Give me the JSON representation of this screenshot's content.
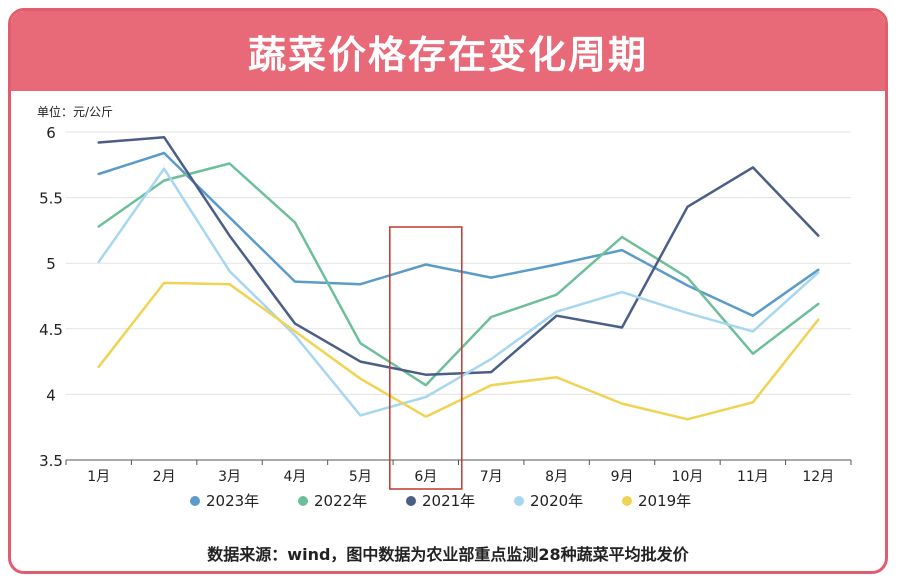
{
  "header": {
    "title": "蔬菜价格存在变化周期"
  },
  "source_note": "数据来源：wind，图中数据为农业部重点监测28种蔬菜平均批发价",
  "colors": {
    "header_bg": "#e86a79",
    "border": "#e35c6e",
    "highlight_box": "#c0392b"
  },
  "chart_data": {
    "type": "line",
    "title": "",
    "unit_label": "单位：元/公斤",
    "categories": [
      "1月",
      "2月",
      "3月",
      "4月",
      "5月",
      "6月",
      "7月",
      "8月",
      "9月",
      "10月",
      "11月",
      "12月"
    ],
    "ylim": [
      3.5,
      6
    ],
    "yticks": [
      "6",
      "5.5",
      "5",
      "4.5",
      "4",
      "3.5"
    ],
    "grid": true,
    "legend_position": "bottom",
    "highlight_category": "6月",
    "series": [
      {
        "name": "2023年",
        "color": "#5b9bc8",
        "values": [
          5.68,
          5.84,
          5.35,
          4.86,
          4.84,
          4.99,
          4.89,
          4.99,
          5.1,
          4.83,
          4.6,
          4.95
        ]
      },
      {
        "name": "2022年",
        "color": "#6dbf9a",
        "values": [
          5.28,
          5.63,
          5.76,
          5.31,
          4.39,
          4.07,
          4.59,
          4.76,
          5.2,
          4.89,
          4.31,
          4.69
        ]
      },
      {
        "name": "2021年",
        "color": "#4a5e86",
        "values": [
          5.92,
          5.96,
          5.21,
          4.54,
          4.25,
          4.15,
          4.17,
          4.6,
          4.51,
          5.43,
          5.73,
          5.21
        ]
      },
      {
        "name": "2020年",
        "color": "#a7d7ef",
        "values": [
          5.01,
          5.72,
          4.94,
          4.45,
          3.84,
          3.98,
          4.27,
          4.63,
          4.78,
          4.62,
          4.48,
          4.93
        ]
      },
      {
        "name": "2019年",
        "color": "#f0d352",
        "values": [
          4.21,
          4.85,
          4.84,
          4.48,
          4.12,
          3.83,
          4.07,
          4.13,
          3.93,
          3.81,
          3.94,
          4.57
        ]
      }
    ]
  }
}
